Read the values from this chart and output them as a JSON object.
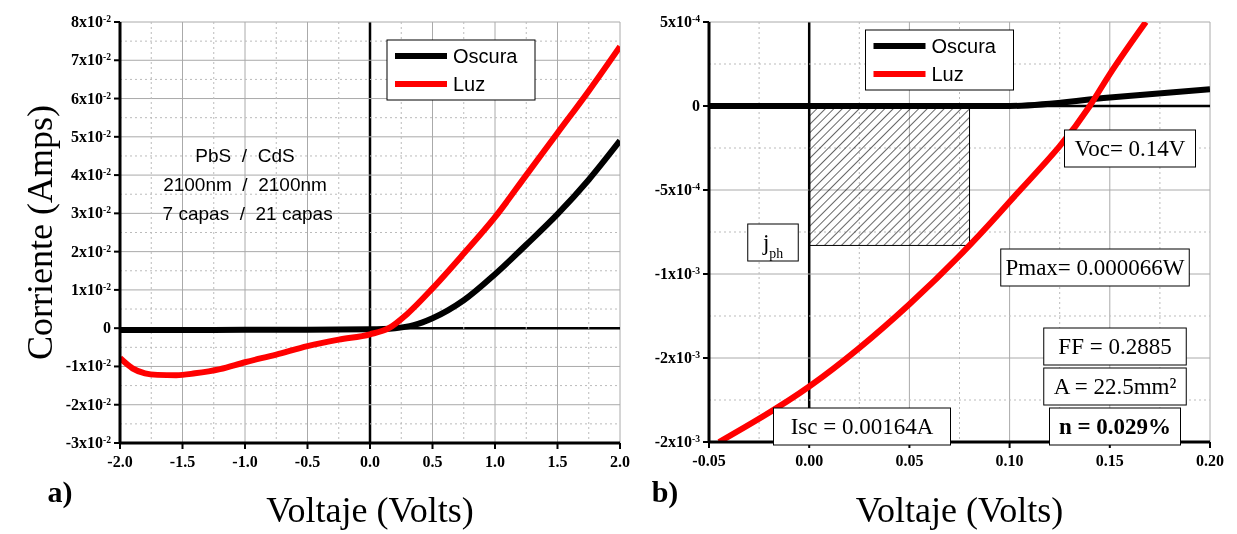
{
  "chart_data": [
    {
      "type": "line",
      "xlabel": "Voltaje (Volts)",
      "ylabel": "Corriente (Amps)",
      "xlim": [
        -2,
        2
      ],
      "ylim": [
        -0.03,
        0.08
      ],
      "xticks": [
        {
          "value": -2,
          "label": "-2.0"
        },
        -1.5,
        {
          "value": -1,
          "label": "-1.0"
        },
        -0.5,
        {
          "value": 0,
          "label": "0.0"
        },
        0.5,
        {
          "value": 1,
          "label": "1.0"
        },
        1.5,
        {
          "value": 2,
          "label": "2.0"
        }
      ],
      "yticks": [
        {
          "value": -0.03,
          "label": "-3x10$^{-2}$"
        },
        {
          "value": -0.02,
          "label": "-2x10$^{-2}$"
        },
        {
          "value": -0.01,
          "label": "-1x10$^{-2}$"
        },
        0,
        {
          "value": 0.01,
          "label": "1x10$^{-2}$"
        },
        {
          "value": 0.02,
          "label": "2x10$^{-2}$"
        },
        {
          "value": 0.03,
          "label": "3x10$^{-2}$"
        },
        {
          "value": 0.04,
          "label": "4x10$^{-2}$"
        },
        {
          "value": 0.05,
          "label": "5x10$^{-2}$"
        },
        {
          "value": 0.06,
          "label": "6x10$^{-2}$"
        },
        {
          "value": 0.07,
          "label": "7x10$^{-2}$"
        },
        {
          "value": 0.08,
          "label": "8x10$^{-2}$"
        }
      ],
      "grid": true,
      "legend": "top right",
      "marker": "none",
      "line_style": "solid",
      "series": [
        {
          "name": "Oscura",
          "color": "#000000",
          "x": [
            -2,
            -1.5,
            -1,
            -0.5,
            0,
            0.2,
            0.35,
            0.5,
            0.75,
            1,
            1.25,
            1.5,
            1.75,
            2
          ],
          "values": [
            -0.0005,
            -0.0005,
            -0.0004,
            -0.0004,
            -0.0003,
            0,
            0.0008,
            0.0026,
            0.0073,
            0.0141,
            0.0218,
            0.0298,
            0.0388,
            0.049
          ]
        },
        {
          "name": "Luz",
          "color": "#ff0000",
          "x": [
            -2,
            -1.9,
            -1.8,
            -1.7,
            -1.55,
            -1.4,
            -1.2,
            -1,
            -0.75,
            -0.5,
            -0.25,
            0,
            0.15,
            0.3,
            0.5,
            0.75,
            1,
            1.25,
            1.5,
            1.75,
            2
          ],
          "values": [
            -0.0078,
            -0.0105,
            -0.0118,
            -0.0122,
            -0.0123,
            -0.0118,
            -0.0107,
            -0.0089,
            -0.0069,
            -0.0047,
            -0.003,
            -0.0016,
            0,
            0.0038,
            0.0104,
            0.0195,
            0.029,
            0.04,
            0.051,
            0.062,
            0.0736
          ]
        }
      ],
      "annotations": [
        "PbS  /  CdS",
        "2100nm  /  2100nm",
        " 7 capas  /  21 capas",
        "a)"
      ]
    },
    {
      "type": "line",
      "xlabel": "Voltaje (Volts)",
      "xlim": [
        -0.05,
        0.2
      ],
      "ylim": [
        -0.002,
        0.0005
      ],
      "xticks": [
        -0.05,
        {
          "value": 0,
          "label": "0.00"
        },
        0.05,
        {
          "value": 0.1,
          "label": "0.10"
        },
        0.15,
        {
          "value": 0.2,
          "label": "0.20"
        }
      ],
      "yticks": [
        {
          "value": -0.002,
          "label": "-2x10$^{-3}$"
        },
        {
          "value": -0.0015,
          "label": "-2x10$^{-3}$"
        },
        {
          "value": -0.001,
          "label": "-1x10$^{-3}$"
        },
        {
          "value": -0.0005,
          "label": "-5x10$^{-4}$"
        },
        0,
        {
          "value": 0.0005,
          "label": "5x10$^{-4}$"
        }
      ],
      "grid": true,
      "legend": "top",
      "marker": "none",
      "line_style": "solid",
      "bands": [
        {
          "axis": "x",
          "from": 0,
          "to": 0.08
        }
      ],
      "series": [
        {
          "name": "Oscura",
          "color": "#000000",
          "x": [
            -0.05,
            0,
            0.05,
            0.1,
            0.15,
            0.2
          ],
          "values": [
            0,
            0,
            0,
            0,
            5e-05,
            0.0001
          ]
        },
        {
          "name": "Luz",
          "color": "#ff0000",
          "x": [
            -0.045,
            0,
            0.05,
            0.08,
            0.1,
            0.14,
            0.15,
            0.168
          ],
          "values": [
            -0.002,
            -0.00167,
            -0.00118,
            -0.00083,
            -0.00057,
            0,
            0.00019,
            0.0005
          ]
        }
      ],
      "annotations": [
        "j$_{ph}$",
        "Voc= 0.14V",
        "Pmax= 0.000066W",
        "FF = 0.2885",
        "A = 22.5mm²",
        "n = 0.029%",
        "Isc = 0.00164A",
        "b)"
      ]
    }
  ]
}
